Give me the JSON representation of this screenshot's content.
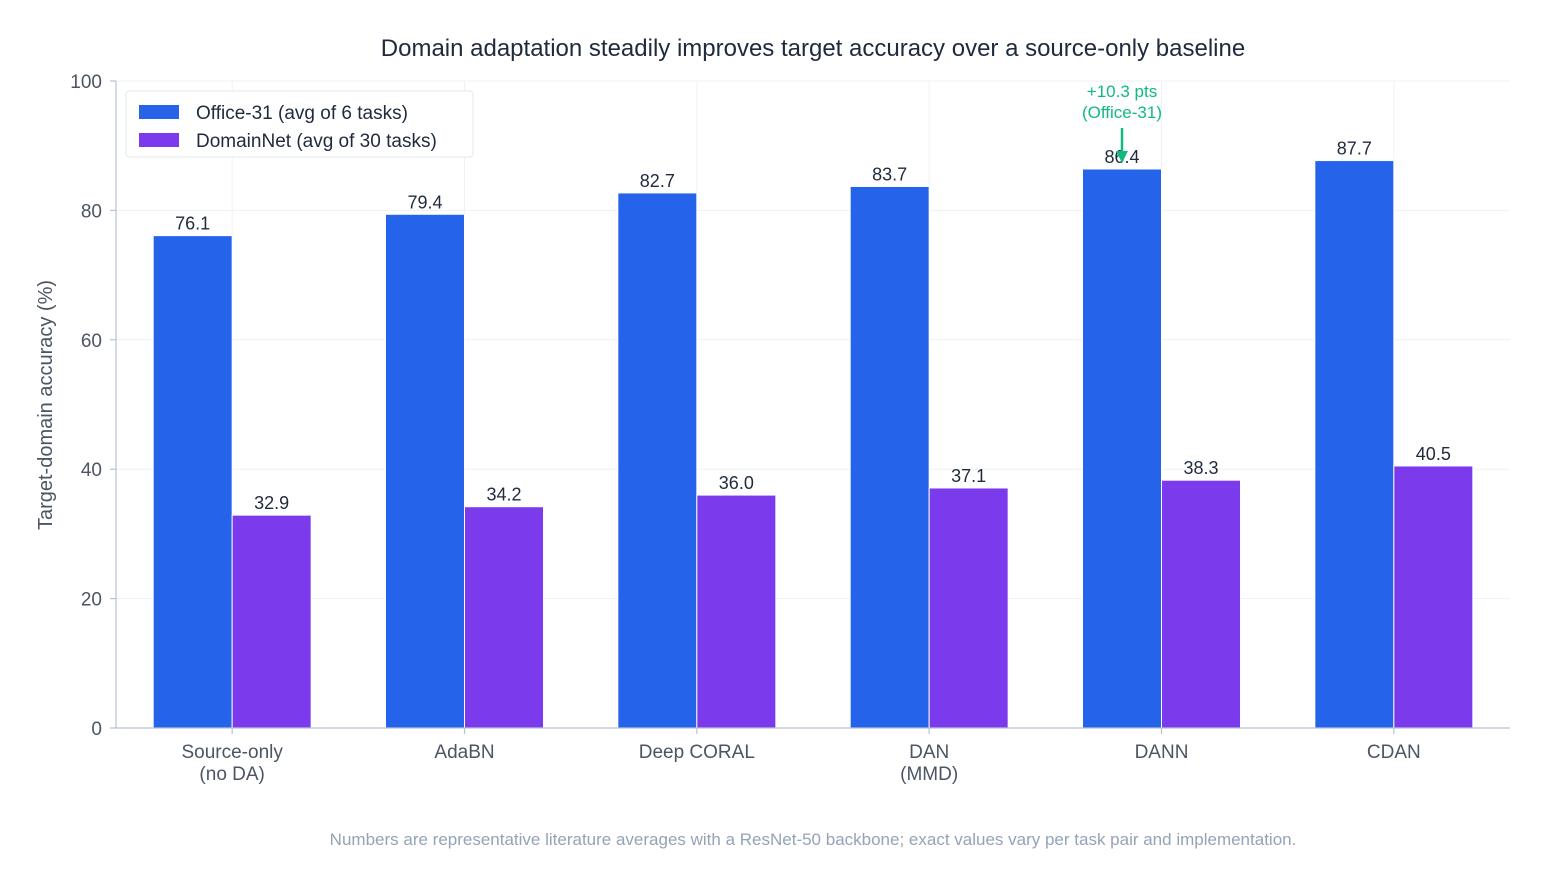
{
  "chart_data": {
    "type": "bar",
    "title": "Domain adaptation steadily improves target accuracy over a source-only baseline",
    "xlabel": "",
    "ylabel": "Target-domain accuracy  (%)",
    "ylim": [
      0,
      100
    ],
    "yticks": [
      0,
      20,
      40,
      60,
      80,
      100
    ],
    "categories": [
      [
        "Source-only",
        "(no DA)"
      ],
      [
        "AdaBN"
      ],
      [
        "Deep CORAL"
      ],
      [
        "DAN",
        "(MMD)"
      ],
      [
        "DANN"
      ],
      [
        "CDAN"
      ]
    ],
    "series": [
      {
        "name": "Office-31  (avg of 6 tasks)",
        "color": "#2563eb",
        "values": [
          76.1,
          79.4,
          82.7,
          83.7,
          86.4,
          87.7
        ]
      },
      {
        "name": "DomainNet  (avg of 30 tasks)",
        "color": "#7c3aed",
        "values": [
          32.9,
          34.2,
          36.0,
          37.1,
          38.3,
          40.5
        ]
      }
    ],
    "grid": true,
    "legend_position": "top-left",
    "annotation": {
      "lines": [
        "+10.3 pts",
        "(Office-31)"
      ],
      "category_index": 4,
      "series_index": 0,
      "color": "#10b981"
    },
    "footnote": "Numbers are representative literature averages with a ResNet-50 backbone; exact values vary per task pair and implementation."
  }
}
